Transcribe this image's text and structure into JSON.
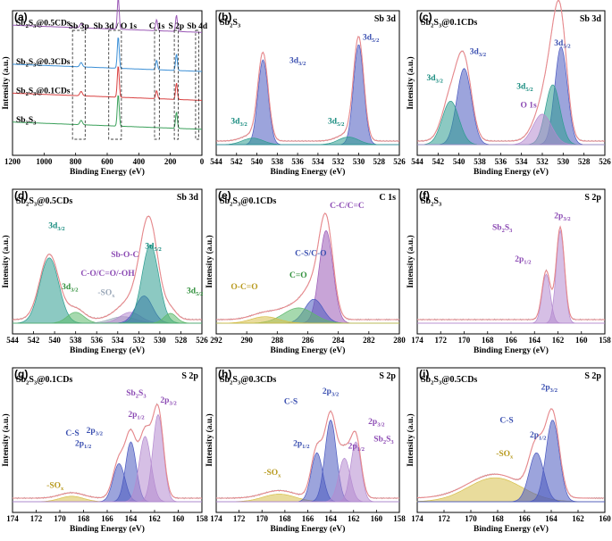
{
  "colors": {
    "envelope": "#e8898d",
    "raw": "#a7a7a7",
    "teal": "#2d9c8f",
    "blue": "#4b59c0",
    "purple": "#9b59b6",
    "lavender": "#b48ad0",
    "green": "#5db96c",
    "yellow": "#d7c04a",
    "grey": "#9aa7b8",
    "violet_ann": "#8c4bb4",
    "blue_ann": "#3a4fb0",
    "teal_ann": "#168b7e",
    "ochre_ann": "#b89a1f"
  },
  "chart_data": [
    {
      "panel": "(a)",
      "type": "line",
      "title": "",
      "xlabel": "Binding Energy (eV)",
      "ylabel": "Intensity (a.u.)",
      "xlim": [
        1200,
        0
      ],
      "xticks": [
        "1200",
        "1000",
        "800",
        "600",
        "400",
        "200",
        "0"
      ],
      "series": [
        {
          "name": "Sb2S3@0.5CDs",
          "color": "#9b59b6",
          "peaks": [
            [
              530,
              1.0
            ],
            [
              287,
              0.35
            ],
            [
              162,
              0.3
            ]
          ]
        },
        {
          "name": "Sb2S3@0.3CDs",
          "color": "#3b8fd6",
          "peaks": [
            [
              530,
              1.0
            ],
            [
              287,
              0.3
            ],
            [
              162,
              0.3
            ]
          ]
        },
        {
          "name": "Sb2S3@0.1CDs",
          "color": "#d94141",
          "peaks": [
            [
              530,
              1.0
            ],
            [
              287,
              0.25
            ],
            [
              162,
              0.3
            ]
          ]
        },
        {
          "name": "Sb2S3",
          "color": "#3aa05a",
          "peaks": [
            [
              530,
              1.0
            ],
            [
              162,
              0.3
            ]
          ]
        }
      ],
      "region_labels": [
        "Sb 3p",
        "Sb 3d / O 1s",
        "C 1s",
        "S 2p",
        "Sb 4d"
      ]
    },
    {
      "panel": "(b)",
      "type": "line",
      "title": "Sb 3d",
      "sample": "Sb2S3",
      "xlabel": "Binding Energy (eV)",
      "ylabel": "",
      "xlim": [
        544,
        526
      ],
      "xticks": [
        "544",
        "542",
        "540",
        "538",
        "536",
        "534",
        "532",
        "530",
        "528",
        "526"
      ],
      "components": [
        {
          "name": "3d3/2",
          "center": 539.4,
          "height": 0.78,
          "width": 0.5,
          "color": "#4b59c0"
        },
        {
          "name": "3d3/2",
          "center": 540.4,
          "height": 0.06,
          "width": 1.0,
          "color": "#2d9c8f"
        },
        {
          "name": "3d5/2",
          "center": 530.0,
          "height": 0.92,
          "width": 0.5,
          "color": "#4b59c0"
        },
        {
          "name": "3d5/2",
          "center": 531.0,
          "height": 0.07,
          "width": 1.0,
          "color": "#2d9c8f"
        }
      ],
      "annotations": [
        "3d3/2",
        "3d5/2",
        "3d3/2",
        "3d5/2"
      ]
    },
    {
      "panel": "(c)",
      "type": "line",
      "title": "Sb 3d",
      "sample": "Sb2S3@0.1CDs",
      "xlabel": "Binding Energy (eV)",
      "ylabel": "Intensity (a.u.)",
      "xlim": [
        544,
        526
      ],
      "xticks": [
        "544",
        "542",
        "540",
        "538",
        "536",
        "534",
        "532",
        "530",
        "528",
        "526"
      ],
      "components": [
        {
          "name": "3d3/2",
          "center": 539.5,
          "height": 0.7,
          "width": 0.7,
          "color": "#4b59c0"
        },
        {
          "name": "3d3/2",
          "center": 540.8,
          "height": 0.4,
          "width": 0.8,
          "color": "#2d9c8f"
        },
        {
          "name": "3d5/2",
          "center": 530.2,
          "height": 0.9,
          "width": 0.6,
          "color": "#4b59c0"
        },
        {
          "name": "3d5/2",
          "center": 531.0,
          "height": 0.55,
          "width": 0.7,
          "color": "#2d9c8f"
        },
        {
          "name": "O 1s",
          "center": 532.0,
          "height": 0.28,
          "width": 0.9,
          "color": "#b48ad0"
        }
      ],
      "annotations": [
        "3d3/2",
        "3d3/2",
        "3d5/2",
        "3d5/2",
        "O 1s"
      ]
    },
    {
      "panel": "(d)",
      "type": "line",
      "title": "Sb 3d",
      "sample": "Sb2S3@0.5CDs",
      "xlabel": "Binding Energy (eV)",
      "ylabel": "Intensity (a.u.)",
      "xlim": [
        544,
        526
      ],
      "xticks": [
        "544",
        "542",
        "540",
        "538",
        "536",
        "534",
        "532",
        "530",
        "528",
        "526"
      ],
      "components": [
        {
          "name": "3d3/2",
          "center": 540.5,
          "height": 0.6,
          "width": 0.9,
          "color": "#2d9c8f"
        },
        {
          "name": "3d3/2",
          "center": 538.0,
          "height": 0.1,
          "width": 0.8,
          "color": "#5db96c"
        },
        {
          "name": "-SOx",
          "center": 533.5,
          "height": 0.06,
          "width": 1.2,
          "color": "#9aa7b8"
        },
        {
          "name": "C-O/C=O/-OH",
          "center": 532.8,
          "height": 0.1,
          "width": 1.0,
          "color": "#b48ad0"
        },
        {
          "name": "Sb-O-C",
          "center": 531.5,
          "height": 0.25,
          "width": 0.8,
          "color": "#4b59c0"
        },
        {
          "name": "3d5/2",
          "center": 530.9,
          "height": 0.72,
          "width": 0.8,
          "color": "#2d9c8f"
        },
        {
          "name": "3d5/2",
          "center": 529.0,
          "height": 0.09,
          "width": 0.6,
          "color": "#5db96c"
        }
      ],
      "annotations": [
        "3d3/2",
        "3d3/2",
        "-SOx",
        "C-O/C=O/-OH",
        "Sb-O-C",
        "3d5/2",
        "3d5/2"
      ]
    },
    {
      "panel": "(e)",
      "type": "line",
      "title": "C 1s",
      "sample": "Sb2S3@0.1CDs",
      "xlabel": "Binding Energy (eV)",
      "ylabel": "Intensity (a.u.)",
      "xlim": [
        292,
        280
      ],
      "xticks": [
        "292",
        "290",
        "288",
        "286",
        "284",
        "282",
        "280"
      ],
      "components": [
        {
          "name": "C-C/C=C",
          "center": 284.8,
          "height": 0.85,
          "width": 0.45,
          "color": "#9b59b6"
        },
        {
          "name": "C-S/C-O",
          "center": 285.6,
          "height": 0.22,
          "width": 0.6,
          "color": "#4b59c0"
        },
        {
          "name": "C=O",
          "center": 286.6,
          "height": 0.14,
          "width": 1.0,
          "color": "#5db96c"
        },
        {
          "name": "O-C=O",
          "center": 288.8,
          "height": 0.06,
          "width": 0.9,
          "color": "#d7c04a"
        }
      ],
      "annotations": [
        "C-C/C=C",
        "C-S/C-O",
        "C=O",
        "O-C=O"
      ]
    },
    {
      "panel": "(f)",
      "type": "line",
      "title": "S 2p",
      "sample": "Sb2S3",
      "xlabel": "Binding Energy (eV)",
      "ylabel": "Intensity (a.u.)",
      "xlim": [
        174,
        158
      ],
      "xticks": [
        "174",
        "172",
        "170",
        "168",
        "166",
        "164",
        "162",
        "160",
        "158"
      ],
      "components": [
        {
          "name": "2p3/2",
          "center": 161.8,
          "height": 0.85,
          "width": 0.35,
          "color": "#b48ad0"
        },
        {
          "name": "2p1/2",
          "center": 163.0,
          "height": 0.45,
          "width": 0.35,
          "color": "#b48ad0"
        }
      ],
      "annotations": [
        "Sb2S3",
        "2p3/2",
        "2p1/2"
      ]
    },
    {
      "panel": "(g)",
      "type": "line",
      "title": "S 2p",
      "sample": "Sb2S3@0.1CDs",
      "xlabel": "Binding Energy (eV)",
      "ylabel": "Intensity (a.u.)",
      "xlim": [
        174,
        158
      ],
      "xticks": [
        "174",
        "172",
        "170",
        "168",
        "166",
        "164",
        "162",
        "160",
        "158"
      ],
      "components": [
        {
          "name": "-SOx",
          "center": 169.0,
          "height": 0.05,
          "width": 1.0,
          "color": "#d7c04a"
        },
        {
          "name": "2p1/2",
          "center": 165.0,
          "height": 0.35,
          "width": 0.5,
          "color": "#4b59c0"
        },
        {
          "name": "2p3/2",
          "center": 164.0,
          "height": 0.55,
          "width": 0.45,
          "color": "#4b59c0"
        },
        {
          "name": "2p1/2",
          "center": 162.8,
          "height": 0.6,
          "width": 0.5,
          "color": "#b48ad0"
        },
        {
          "name": "2p3/2",
          "center": 161.7,
          "height": 0.8,
          "width": 0.45,
          "color": "#b48ad0"
        }
      ],
      "annotations": [
        "-SOx",
        "C-S",
        "2p1/2",
        "2p3/2",
        "Sb2S3",
        "2p1/2",
        "2p3/2"
      ]
    },
    {
      "panel": "(h)",
      "type": "line",
      "title": "S 2p",
      "sample": "Sb2S3@0.3CDs",
      "xlabel": "Binding Energy (eV)",
      "ylabel": "Intensity (a.u.)",
      "xlim": [
        174,
        158
      ],
      "xticks": [
        "174",
        "172",
        "170",
        "168",
        "166",
        "164",
        "162",
        "160",
        "158"
      ],
      "components": [
        {
          "name": "-SOx",
          "center": 168.5,
          "height": 0.07,
          "width": 1.4,
          "color": "#d7c04a"
        },
        {
          "name": "2p1/2",
          "center": 165.2,
          "height": 0.45,
          "width": 0.5,
          "color": "#4b59c0"
        },
        {
          "name": "2p3/2",
          "center": 164.0,
          "height": 0.75,
          "width": 0.5,
          "color": "#4b59c0"
        },
        {
          "name": "2p1/2",
          "center": 162.8,
          "height": 0.4,
          "width": 0.5,
          "color": "#b48ad0"
        },
        {
          "name": "2p3/2",
          "center": 161.8,
          "height": 0.55,
          "width": 0.45,
          "color": "#b48ad0"
        }
      ],
      "annotations": [
        "-SOx",
        "C-S",
        "2p3/2",
        "2p1/2",
        "2p1/2",
        "2p3/2",
        "Sb2S3"
      ]
    },
    {
      "panel": "(i)",
      "type": "line",
      "title": "S 2p",
      "sample": "Sb2S3@0.5CDs",
      "xlabel": "Binding Energy (eV)",
      "ylabel": "Intensity (a.u.)",
      "xlim": [
        174,
        160
      ],
      "xticks": [
        "174",
        "172",
        "170",
        "168",
        "166",
        "164",
        "162",
        "160"
      ],
      "components": [
        {
          "name": "-SOx",
          "center": 168.2,
          "height": 0.22,
          "width": 2.0,
          "color": "#d7c04a"
        },
        {
          "name": "2p1/2",
          "center": 165.1,
          "height": 0.45,
          "width": 0.55,
          "color": "#4b59c0"
        },
        {
          "name": "2p3/2",
          "center": 163.9,
          "height": 0.75,
          "width": 0.5,
          "color": "#4b59c0"
        }
      ],
      "annotations": [
        "-SOx",
        "C-S",
        "2p3/2",
        "2p1/2"
      ]
    }
  ]
}
